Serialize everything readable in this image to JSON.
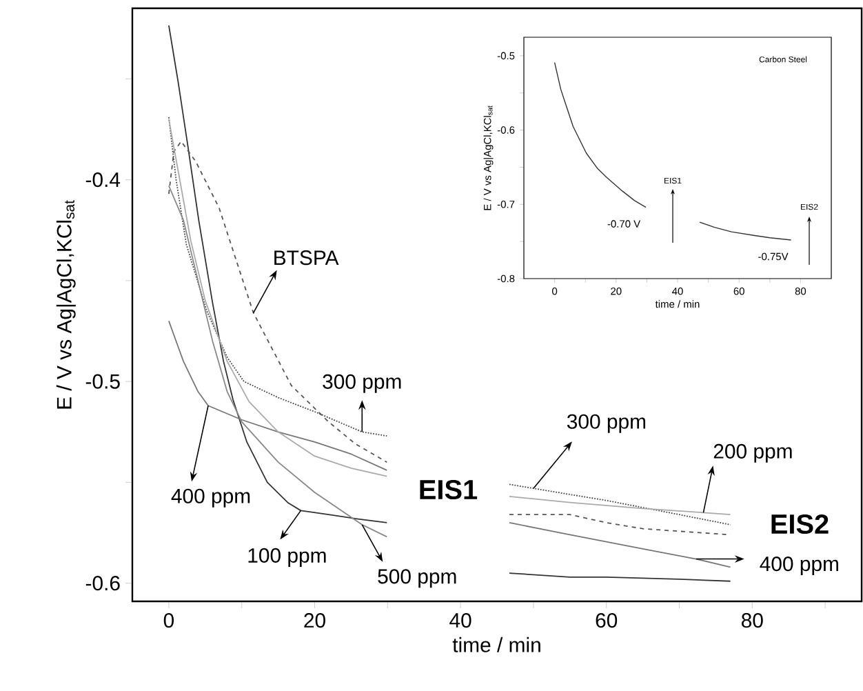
{
  "chart_data": [
    {
      "type": "line",
      "xlabel": "time / min",
      "ylabel": "E / V vs Ag|AgCl,KCl$_{sat}$",
      "xlim": [
        -5,
        95
      ],
      "ylim": [
        -0.609,
        -0.315
      ],
      "xticks": [
        0,
        {
          "value": 10,
          "label": null
        },
        20,
        {
          "value": 30,
          "label": null
        },
        40,
        {
          "value": 50,
          "label": null
        },
        60,
        {
          "value": 70,
          "label": null
        },
        80,
        {
          "value": 90,
          "label": null
        }
      ],
      "yticks": [
        -0.6,
        {
          "value": -0.55,
          "label": null
        },
        -0.5,
        {
          "value": -0.45,
          "label": null
        },
        -0.4,
        {
          "value": -0.35,
          "label": null
        }
      ],
      "series": [
        {
          "color": "#333333",
          "line_style": "solid",
          "x": [
            0,
            1.3,
            2.6,
            4.1,
            6.0,
            7.5,
            8.8,
            10.7,
            13.5,
            16.3,
            18.1,
            21.9,
            25.6,
            29.9,
            null,
            46.7,
            55,
            60,
            70,
            77
          ],
          "values": [
            -0.3235,
            -0.352,
            -0.383,
            -0.42,
            -0.461,
            -0.49,
            -0.509,
            -0.53,
            -0.55,
            -0.56,
            -0.564,
            -0.566,
            -0.568,
            -0.57,
            null,
            -0.595,
            -0.597,
            -0.597,
            -0.598,
            -0.599
          ]
        },
        {
          "color": "#555555",
          "line_style": "dashed",
          "x": [
            0,
            0.7,
            1.7,
            3.7,
            6.9,
            11.6,
            16.8,
            21.9,
            25.6,
            29.9,
            null,
            46.7,
            55,
            60,
            65,
            77
          ],
          "values": [
            -0.407,
            -0.386,
            -0.381,
            -0.391,
            -0.414,
            -0.466,
            -0.502,
            -0.52,
            -0.531,
            -0.54,
            null,
            -0.566,
            -0.566,
            -0.57,
            -0.573,
            -0.576
          ]
        },
        {
          "color": "#444444",
          "line_style": "dotted",
          "x": [
            0,
            1,
            2.4,
            5.2,
            8.0,
            10.3,
            15,
            20,
            26.5,
            29.9,
            null,
            46.7,
            50,
            60,
            70,
            77
          ],
          "values": [
            -0.369,
            -0.4,
            -0.432,
            -0.465,
            -0.488,
            -0.5,
            -0.508,
            -0.515,
            -0.525,
            -0.527,
            null,
            -0.551,
            -0.553,
            -0.559,
            -0.566,
            -0.571
          ]
        },
        {
          "color": "#777777",
          "line_style": "solid",
          "x": [
            0,
            2,
            4,
            5.4,
            10,
            15,
            20,
            25,
            29.9,
            null,
            46.7,
            55,
            65,
            72.3,
            77
          ],
          "values": [
            -0.47,
            -0.49,
            -0.505,
            -0.512,
            -0.519,
            -0.525,
            -0.53,
            -0.536,
            -0.544,
            null,
            -0.57,
            -0.576,
            -0.583,
            -0.588,
            -0.592
          ]
        },
        {
          "color": "#aaaaaa",
          "line_style": "solid",
          "x": [
            0,
            1.5,
            3,
            5,
            8,
            11,
            15,
            20,
            25,
            29.9,
            null,
            46.7,
            55,
            65,
            73.3,
            77
          ],
          "values": [
            -0.37,
            -0.4,
            -0.43,
            -0.46,
            -0.49,
            -0.51,
            -0.525,
            -0.537,
            -0.543,
            -0.547,
            null,
            -0.557,
            -0.56,
            -0.563,
            -0.565,
            -0.566
          ]
        },
        {
          "color": "#888888",
          "line_style": "solid",
          "x": [
            0,
            2,
            4,
            6,
            8,
            10,
            15,
            20,
            26.5,
            29.9
          ],
          "values": [
            -0.403,
            -0.42,
            -0.45,
            -0.48,
            -0.505,
            -0.52,
            -0.54,
            -0.555,
            -0.571,
            -0.577
          ]
        }
      ],
      "annotations": [
        {
          "text": "BTSPA",
          "x": 11.6,
          "y": -0.466
        },
        {
          "text": "300 ppm",
          "x": 26.5,
          "y": -0.525
        },
        {
          "text": "400 ppm",
          "x": 5.4,
          "y": -0.512
        },
        {
          "text": "100 ppm",
          "x": 18.1,
          "y": -0.564
        },
        {
          "text": "500 ppm",
          "x": 26.5,
          "y": -0.571
        },
        {
          "text": "300 ppm",
          "x": 50,
          "y": -0.553
        },
        {
          "text": "200 ppm",
          "x": 73.3,
          "y": -0.565
        },
        {
          "text": "400 ppm",
          "x": 72.3,
          "y": -0.588
        },
        "**EIS1**",
        "**EIS2**"
      ]
    },
    {
      "type": "line",
      "xlabel": "time / min",
      "ylabel": "E / V vs Ag|AgCl,KCl$_{sat}$",
      "xlim": [
        -10,
        90
      ],
      "ylim": [
        -0.8,
        -0.475
      ],
      "xticks": [
        0,
        {
          "value": 10,
          "label": null
        },
        20,
        {
          "value": 30,
          "label": null
        },
        40,
        {
          "value": 50,
          "label": null
        },
        60,
        {
          "value": 70,
          "label": null
        },
        80
      ],
      "yticks": [
        -0.8,
        {
          "value": -0.75,
          "label": null
        },
        -0.7,
        {
          "value": -0.65,
          "label": null
        },
        -0.6,
        {
          "value": -0.55,
          "label": null
        },
        -0.5
      ],
      "series": [
        {
          "color": "#333333",
          "line_style": "solid",
          "x": [
            0,
            2,
            3.6,
            6,
            10.3,
            14,
            17,
            22,
            26,
            29.7,
            null,
            47.2,
            52,
            57.5,
            65,
            70,
            76.9
          ],
          "values": [
            -0.509,
            -0.545,
            -0.565,
            -0.595,
            -0.631,
            -0.652,
            -0.664,
            -0.682,
            -0.695,
            -0.704,
            null,
            -0.724,
            -0.731,
            -0.737,
            -0.742,
            -0.745,
            -0.748
          ]
        }
      ],
      "annotations": [
        "Carbon Steel",
        {
          "text": "-0.70 V",
          "x": 29.7,
          "y": -0.704
        },
        {
          "text": "-0.75V",
          "x": 76.9,
          "y": -0.748
        },
        "EIS1",
        "EIS2"
      ]
    }
  ]
}
